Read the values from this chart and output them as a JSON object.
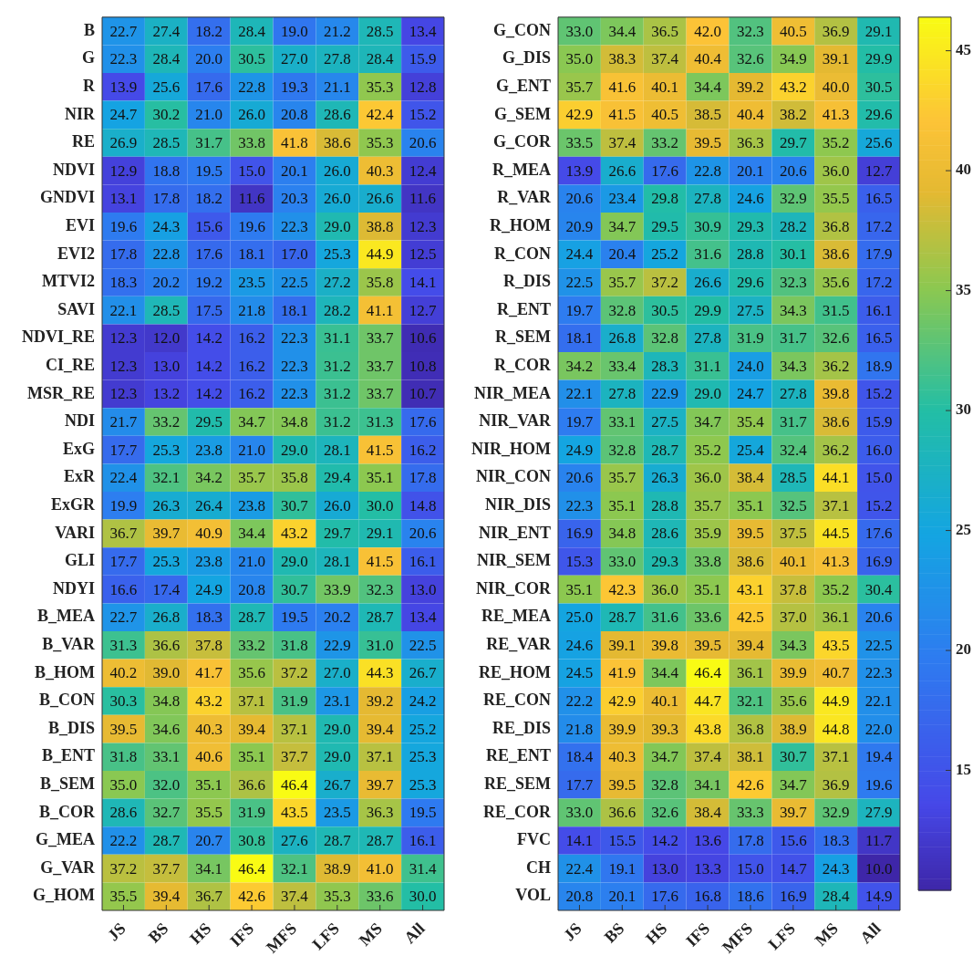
{
  "chart_data": [
    {
      "type": "heatmap",
      "categories": [
        "JS",
        "BS",
        "HS",
        "IFS",
        "MFS",
        "LFS",
        "MS",
        "All"
      ],
      "y_categories": [
        "B",
        "G",
        "R",
        "NIR",
        "RE",
        "NDVI",
        "GNDVI",
        "EVI",
        "EVI2",
        "MTVI2",
        "SAVI",
        "NDVI_RE",
        "CI_RE",
        "MSR_RE",
        "NDI",
        "ExG",
        "ExR",
        "ExGR",
        "VARI",
        "GLI",
        "NDYI",
        "B_MEA",
        "B_VAR",
        "B_HOM",
        "B_CON",
        "B_DIS",
        "B_ENT",
        "B_SEM",
        "B_COR",
        "G_MEA",
        "G_VAR",
        "G_HOM"
      ],
      "cells": [
        [
          22.7,
          27.4,
          18.2,
          28.4,
          19.0,
          21.2,
          28.5,
          13.4
        ],
        [
          22.3,
          28.4,
          20.0,
          30.5,
          27.0,
          27.8,
          28.4,
          15.9
        ],
        [
          13.9,
          25.6,
          17.6,
          22.8,
          19.3,
          21.1,
          35.3,
          12.8
        ],
        [
          24.7,
          30.2,
          21.0,
          26.0,
          20.8,
          28.6,
          42.4,
          15.2
        ],
        [
          26.9,
          28.5,
          31.7,
          33.8,
          41.8,
          38.6,
          35.3,
          20.6
        ],
        [
          12.9,
          18.8,
          19.5,
          15.0,
          20.1,
          26.0,
          40.3,
          12.4
        ],
        [
          13.1,
          17.8,
          18.2,
          11.6,
          20.3,
          26.0,
          26.6,
          11.6
        ],
        [
          19.6,
          24.3,
          15.6,
          19.6,
          22.3,
          29.0,
          38.8,
          12.3
        ],
        [
          17.8,
          22.8,
          17.6,
          18.1,
          17.0,
          25.3,
          44.9,
          12.5
        ],
        [
          18.3,
          20.2,
          19.2,
          23.5,
          22.5,
          27.2,
          35.8,
          14.1
        ],
        [
          22.1,
          28.5,
          17.5,
          21.8,
          18.1,
          28.2,
          41.1,
          12.7
        ],
        [
          12.3,
          12.0,
          14.2,
          16.2,
          22.3,
          31.1,
          33.7,
          10.6
        ],
        [
          12.3,
          13.0,
          14.2,
          16.2,
          22.3,
          31.2,
          33.7,
          10.8
        ],
        [
          12.3,
          13.2,
          14.2,
          16.2,
          22.3,
          31.2,
          33.7,
          10.7
        ],
        [
          21.7,
          33.2,
          29.5,
          34.7,
          34.8,
          31.2,
          31.3,
          17.6
        ],
        [
          17.7,
          25.3,
          23.8,
          21.0,
          29.0,
          28.1,
          41.5,
          16.2
        ],
        [
          22.4,
          32.1,
          34.2,
          35.7,
          35.8,
          29.4,
          35.1,
          17.8
        ],
        [
          19.9,
          26.3,
          26.4,
          23.8,
          30.7,
          26.0,
          30.0,
          14.8
        ],
        [
          36.7,
          39.7,
          40.9,
          34.4,
          43.2,
          29.7,
          29.1,
          20.6
        ],
        [
          17.7,
          25.3,
          23.8,
          21.0,
          29.0,
          28.1,
          41.5,
          16.1
        ],
        [
          16.6,
          17.4,
          24.9,
          20.8,
          30.7,
          33.9,
          32.3,
          13.0
        ],
        [
          22.7,
          26.8,
          18.3,
          28.7,
          19.5,
          20.2,
          28.7,
          13.4
        ],
        [
          31.3,
          36.6,
          37.8,
          33.2,
          31.8,
          22.9,
          31.0,
          22.5
        ],
        [
          40.2,
          39.0,
          41.7,
          35.6,
          37.2,
          27.0,
          44.3,
          26.7
        ],
        [
          30.3,
          34.8,
          43.2,
          37.1,
          31.9,
          23.1,
          39.2,
          24.2
        ],
        [
          39.5,
          34.6,
          40.3,
          39.4,
          37.1,
          29.0,
          39.4,
          25.2
        ],
        [
          31.8,
          33.1,
          40.6,
          35.1,
          37.7,
          29.0,
          37.1,
          25.3
        ],
        [
          35.0,
          32.0,
          35.1,
          36.6,
          46.4,
          26.7,
          39.7,
          25.3
        ],
        [
          28.6,
          32.7,
          35.5,
          31.9,
          43.5,
          23.5,
          36.3,
          19.5
        ],
        [
          22.2,
          28.7,
          20.7,
          30.8,
          27.6,
          28.7,
          28.7,
          16.1
        ],
        [
          37.2,
          37.7,
          34.1,
          46.4,
          32.1,
          38.9,
          41.0,
          31.4
        ],
        [
          35.5,
          39.4,
          36.7,
          42.6,
          37.4,
          35.3,
          33.6,
          30.0
        ]
      ],
      "cell_labels": [
        [
          "22.7",
          "27.4",
          "18.2",
          "28.4",
          "19.0",
          "21.2",
          "28.5",
          "13.4"
        ],
        [
          "22.3",
          "28.4",
          "20.0",
          "30.5",
          "27.0",
          "27.8",
          "28.4",
          "15.9"
        ],
        [
          "13.9",
          "25.6",
          "17.6",
          "22.8",
          "19.3",
          "21.1",
          "35.3",
          "12.8"
        ],
        [
          "24.7",
          "30.2",
          "21.0",
          "26.0",
          "20.8",
          "28.6",
          "42.4",
          "15.2"
        ],
        [
          "26.9",
          "28.5",
          "31.7",
          "33.8",
          "41.8",
          "38.6",
          "35.3",
          "20.6"
        ],
        [
          "12.9",
          "18.8",
          "19.5",
          "15.0",
          "20.1",
          "26.0",
          "40.3",
          "12.4"
        ],
        [
          "13.1",
          "17.8",
          "18.2",
          "11.6",
          "20.3",
          "26.0",
          "26.6",
          "11.6"
        ],
        [
          "19.6",
          "24.3",
          "15.6",
          "19.6",
          "22.3",
          "29.0",
          "38.8",
          "12.3"
        ],
        [
          "17.8",
          "22.8",
          "17.6",
          "18.1",
          "17.0",
          "25.3",
          "44.9",
          "12.5"
        ],
        [
          "18.3",
          "20.2",
          "19.2",
          "23.5",
          "22.5",
          "27.2",
          "35.8",
          "14.1"
        ],
        [
          "22.1",
          "28.5",
          "17.5",
          "21.8",
          "18.1",
          "28.2",
          "41.1",
          "12.7"
        ],
        [
          "12.3",
          "12.0",
          "14.2",
          "16.2",
          "22.3",
          "31.1",
          "33.7",
          "10.6"
        ],
        [
          "12.3",
          "13.0",
          "14.2",
          "16.2",
          "22.3",
          "31.2",
          "33.7",
          "10.8"
        ],
        [
          "12.3",
          "13.2",
          "14.2",
          "16.2",
          "22.3",
          "31.2",
          "33.7",
          "10.7"
        ],
        [
          "21.7",
          "33.2",
          "29.5",
          "34.7",
          "34.8",
          "31.2",
          "31.3",
          "17.6"
        ],
        [
          "17.7",
          "25.3",
          "23.8",
          "21.0",
          "29.0",
          "28.1",
          "41.5",
          "16.2"
        ],
        [
          "22.4",
          "32.1",
          "34.2",
          "35.7",
          "35.8",
          "29.4",
          "35.1",
          "17.8"
        ],
        [
          "19.9",
          "26.3",
          "26.4",
          "23.8",
          "30.7",
          "26.0",
          "30.0",
          "14.8"
        ],
        [
          "36.7",
          "39.7",
          "40.9",
          "34.4",
          "43.2",
          "29.7",
          "29.1",
          "20.6"
        ],
        [
          "17.7",
          "25.3",
          "23.8",
          "21.0",
          "29.0",
          "28.1",
          "41.5",
          "16.1"
        ],
        [
          "16.6",
          "17.4",
          "24.9",
          "20.8",
          "30.7",
          "33.9",
          "32.3",
          "13.0"
        ],
        [
          "22.7",
          "26.8",
          "18.3",
          "28.7",
          "19.5",
          "20.2",
          "28.7",
          "13.4"
        ],
        [
          "31.3",
          "36.6",
          "37.8",
          "33.2",
          "31.8",
          "22.9",
          "31.0",
          "22.5"
        ],
        [
          "40.2",
          "39.0",
          "41.7",
          "35.6",
          "37.2",
          "27.0",
          "44.3",
          "26.7"
        ],
        [
          "30.3",
          "34.8",
          "43.2",
          "37.1",
          "31.9",
          "23.1",
          "39.2",
          "24.2"
        ],
        [
          "39.5",
          "34.6",
          "40.3",
          "39.4",
          "37.1",
          "29.0",
          "39.4",
          "25.2"
        ],
        [
          "31.8",
          "33.1",
          "40.6",
          "35.1",
          "37.7",
          "29.0",
          "37.1",
          "25.3"
        ],
        [
          "35.0",
          "32.0",
          "35.1",
          "36.6",
          "46.4",
          "26.7",
          "39.7",
          "25.3"
        ],
        [
          "28.6",
          "32.7",
          "35.5",
          "31.9",
          "43.5",
          "23.5",
          "36.3",
          "19.5"
        ],
        [
          "22.2",
          "28.7",
          "20.7",
          "30.8",
          "27.6",
          "28.7",
          "28.7",
          "16.1"
        ],
        [
          "37.2",
          "37.7",
          "34.1",
          "46.4",
          "32.1",
          "38.9",
          "41.0",
          "31.4"
        ],
        [
          "35.5",
          "39.4",
          "36.7",
          "42.6",
          "37.4",
          "35.3",
          "33.6",
          "30.0"
        ]
      ]
    },
    {
      "type": "heatmap",
      "categories": [
        "JS",
        "BS",
        "HS",
        "IFS",
        "MFS",
        "LFS",
        "MS",
        "All"
      ],
      "y_categories": [
        "G_CON",
        "G_DIS",
        "G_ENT",
        "G_SEM",
        "G_COR",
        "R_MEA",
        "R_VAR",
        "R_HOM",
        "R_CON",
        "R_DIS",
        "R_ENT",
        "R_SEM",
        "R_COR",
        "NIR_MEA",
        "NIR_VAR",
        "NIR_HOM",
        "NIR_CON",
        "NIR_DIS",
        "NIR_ENT",
        "NIR_SEM",
        "NIR_COR",
        "RE_MEA",
        "RE_VAR",
        "RE_HOM",
        "RE_CON",
        "RE_DIS",
        "RE_ENT",
        "RE_SEM",
        "RE_COR",
        "FVC",
        "CH",
        "VOL"
      ],
      "cells": [
        [
          33.0,
          34.4,
          36.5,
          42.0,
          32.3,
          40.5,
          36.9,
          29.1
        ],
        [
          35.0,
          38.3,
          37.4,
          40.4,
          32.6,
          34.9,
          39.1,
          29.9
        ],
        [
          35.7,
          41.6,
          40.1,
          34.4,
          39.2,
          43.2,
          40.0,
          30.5
        ],
        [
          42.9,
          41.5,
          40.5,
          38.5,
          40.4,
          38.2,
          41.3,
          29.6
        ],
        [
          33.5,
          37.4,
          33.2,
          39.5,
          36.3,
          29.7,
          35.2,
          25.6
        ],
        [
          13.9,
          26.6,
          17.6,
          22.8,
          20.1,
          20.6,
          36.0,
          12.7
        ],
        [
          20.6,
          23.4,
          29.8,
          27.8,
          24.6,
          32.9,
          35.5,
          16.5
        ],
        [
          20.9,
          34.7,
          29.5,
          30.9,
          29.3,
          28.2,
          36.8,
          17.2
        ],
        [
          24.4,
          20.4,
          25.2,
          31.6,
          28.8,
          30.1,
          38.6,
          17.9
        ],
        [
          22.5,
          35.7,
          37.2,
          26.6,
          29.6,
          32.3,
          35.6,
          17.2
        ],
        [
          19.7,
          32.8,
          30.5,
          29.9,
          27.5,
          34.3,
          31.5,
          16.1
        ],
        [
          18.1,
          26.8,
          32.8,
          27.8,
          31.9,
          31.7,
          32.6,
          16.5
        ],
        [
          34.2,
          33.4,
          28.3,
          31.1,
          24.0,
          34.3,
          36.2,
          18.9
        ],
        [
          22.1,
          27.8,
          22.9,
          29.0,
          24.7,
          27.8,
          39.8,
          15.2
        ],
        [
          19.7,
          33.1,
          27.5,
          34.7,
          35.4,
          31.7,
          38.6,
          15.9
        ],
        [
          24.9,
          32.8,
          28.7,
          35.2,
          25.4,
          32.4,
          36.2,
          16.0
        ],
        [
          20.6,
          35.7,
          26.3,
          36.0,
          38.4,
          28.5,
          44.1,
          15.0
        ],
        [
          22.3,
          35.1,
          28.8,
          35.7,
          35.1,
          32.5,
          37.1,
          15.2
        ],
        [
          16.9,
          34.8,
          28.6,
          35.9,
          39.5,
          37.5,
          44.5,
          17.6
        ],
        [
          15.3,
          33.0,
          29.3,
          33.8,
          38.6,
          40.1,
          41.3,
          16.9
        ],
        [
          35.1,
          42.3,
          36.0,
          35.1,
          43.1,
          37.8,
          35.2,
          30.4
        ],
        [
          25.0,
          28.7,
          31.6,
          33.6,
          42.5,
          37.0,
          36.1,
          20.6
        ],
        [
          24.6,
          39.1,
          39.8,
          39.5,
          39.4,
          34.3,
          43.5,
          22.5
        ],
        [
          24.5,
          41.9,
          34.4,
          46.4,
          36.1,
          39.9,
          40.7,
          22.3
        ],
        [
          22.2,
          42.9,
          40.1,
          44.7,
          32.1,
          35.6,
          44.9,
          22.1
        ],
        [
          21.8,
          39.9,
          39.3,
          43.8,
          36.8,
          38.9,
          44.8,
          22.0
        ],
        [
          18.4,
          40.3,
          34.7,
          37.4,
          38.1,
          30.7,
          37.1,
          19.4
        ],
        [
          17.7,
          39.5,
          32.8,
          34.1,
          42.6,
          34.7,
          36.9,
          19.6
        ],
        [
          33.0,
          36.6,
          32.6,
          38.4,
          33.3,
          39.7,
          32.9,
          27.9
        ],
        [
          14.1,
          15.5,
          14.2,
          13.6,
          17.8,
          15.6,
          18.3,
          11.7
        ],
        [
          22.4,
          19.1,
          13.0,
          13.3,
          15.0,
          14.7,
          24.3,
          10.0
        ],
        [
          20.8,
          20.1,
          17.6,
          16.8,
          18.6,
          16.9,
          28.4,
          14.9
        ]
      ],
      "cell_labels": [
        [
          "33.0",
          "34.4",
          "36.5",
          "42.0",
          "32.3",
          "40.5",
          "36.9",
          "29.1"
        ],
        [
          "35.0",
          "38.3",
          "37.4",
          "40.4",
          "32.6",
          "34.9",
          "39.1",
          "29.9"
        ],
        [
          "35.7",
          "41.6",
          "40.1",
          "34.4",
          "39.2",
          "43.2",
          "40.0",
          "30.5"
        ],
        [
          "42.9",
          "41.5",
          "40.5",
          "38.5",
          "40.4",
          "38.2",
          "41.3",
          "29.6"
        ],
        [
          "33.5",
          "37.4",
          "33.2",
          "39.5",
          "36.3",
          "29.7",
          "35.2",
          "25.6"
        ],
        [
          "13.9",
          "26.6",
          "17.6",
          "22.8",
          "20.1",
          "20.6",
          "36.0",
          "12.7"
        ],
        [
          "20.6",
          "23.4",
          "29.8",
          "27.8",
          "24.6",
          "32.9",
          "35.5",
          "16.5"
        ],
        [
          "20.9",
          "34.7",
          "29.5",
          "30.9",
          "29.3",
          "28.2",
          "36.8",
          "17.2"
        ],
        [
          "24.4",
          "20.4",
          "25.2",
          "31.6",
          "28.8",
          "30.1",
          "38.6",
          "17.9"
        ],
        [
          "22.5",
          "35.7",
          "37.2",
          "26.6",
          "29.6",
          "32.3",
          "35.6",
          "17.2"
        ],
        [
          "19.7",
          "32.8",
          "30.5",
          "29.9",
          "27.5",
          "34.3",
          "31.5",
          "16.1"
        ],
        [
          "18.1",
          "26.8",
          "32.8",
          "27.8",
          "31.9",
          "31.7",
          "32.6",
          "16.5"
        ],
        [
          "34.2",
          "33.4",
          "28.3",
          "31.1",
          "24.0",
          "34.3",
          "36.2",
          "18.9"
        ],
        [
          "22.1",
          "27.8",
          "22.9",
          "29.0",
          "24.7",
          "27.8",
          "39.8",
          "15.2"
        ],
        [
          "19.7",
          "33.1",
          "27.5",
          "34.7",
          "35.4",
          "31.7",
          "38.6",
          "15.9"
        ],
        [
          "24.9",
          "32.8",
          "28.7",
          "35.2",
          "25.4",
          "32.4",
          "36.2",
          "16.0"
        ],
        [
          "20.6",
          "35.7",
          "26.3",
          "36.0",
          "38.4",
          "28.5",
          "44.1",
          "15.0"
        ],
        [
          "22.3",
          "35.1",
          "28.8",
          "35.7",
          "35.1",
          "32.5",
          "37.1",
          "15.2"
        ],
        [
          "16.9",
          "34.8",
          "28.6",
          "35.9",
          "39.5",
          "37.5",
          "44.5",
          "17.6"
        ],
        [
          "15.3",
          "33.0",
          "29.3",
          "33.8",
          "38.6",
          "40.1",
          "41.3",
          "16.9"
        ],
        [
          "35.1",
          "42.3",
          "36.0",
          "35.1",
          "43.1",
          "37.8",
          "35.2",
          "30.4"
        ],
        [
          "25.0",
          "28.7",
          "31.6",
          "33.6",
          "42.5",
          "37.0",
          "36.1",
          "20.6"
        ],
        [
          "24.6",
          "39.1",
          "39.8",
          "39.5",
          "39.4",
          "34.3",
          "43.5",
          "22.5"
        ],
        [
          "24.5",
          "41.9",
          "34.4",
          "46.4",
          "36.1",
          "39.9",
          "40.7",
          "22.3"
        ],
        [
          "22.2",
          "42.9",
          "40.1",
          "44.7",
          "32.1",
          "35.6",
          "44.9",
          "22.1"
        ],
        [
          "21.8",
          "39.9",
          "39.3",
          "43.8",
          "36.8",
          "38.9",
          "44.8",
          "22.0"
        ],
        [
          "18.4",
          "40.3",
          "34.7",
          "37.4",
          "38.1",
          "30.7",
          "37.1",
          "19.4"
        ],
        [
          "17.7",
          "39.5",
          "32.8",
          "34.1",
          "42.6",
          "34.7",
          "36.9",
          "19.6"
        ],
        [
          "33.0",
          "36.6",
          "32.6",
          "38.4",
          "33.3",
          "39.7",
          "32.9",
          "27.9"
        ],
        [
          "14.1",
          "15.5",
          "14.2",
          "13.6",
          "17.8",
          "15.6",
          "18.3",
          "11.7"
        ],
        [
          "22.4",
          "19.1",
          "13.0",
          "13.3",
          "15.0",
          "14.7",
          "24.3",
          "10.0"
        ],
        [
          "20.8",
          "20.1",
          "17.6",
          "16.8",
          "18.6",
          "16.9",
          "28.4",
          "14.9"
        ]
      ],
      "clim": [
        10,
        46.4
      ],
      "cticks": [
        15,
        20,
        25,
        30,
        35,
        40,
        45
      ]
    }
  ]
}
